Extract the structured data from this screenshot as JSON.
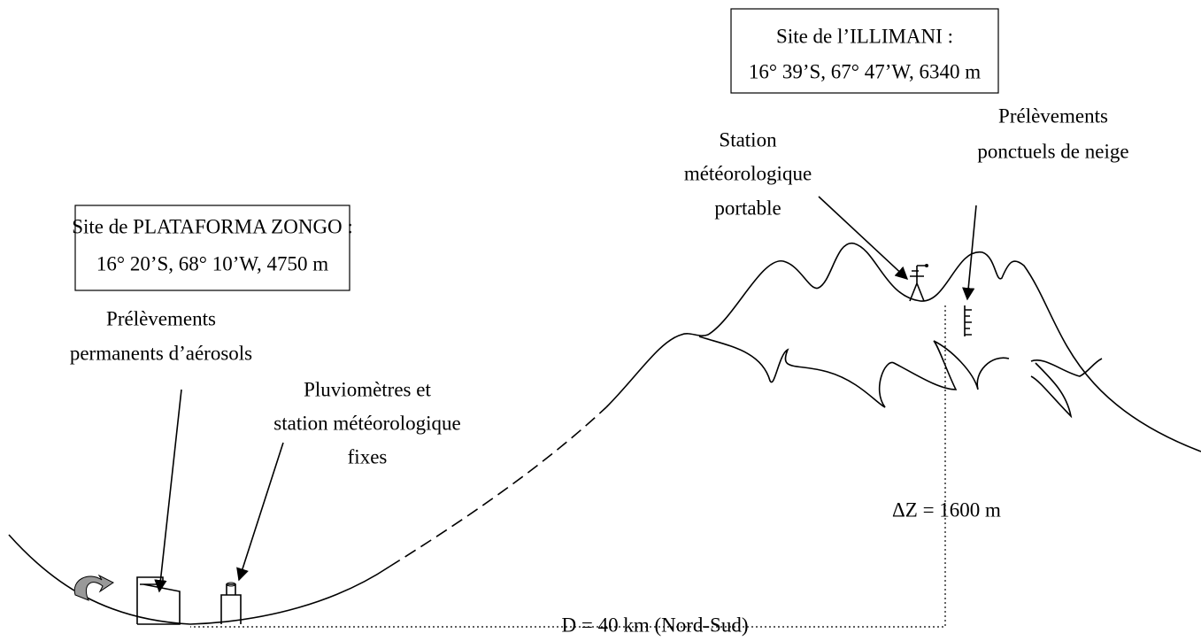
{
  "sites": [
    {
      "name": "Site de l’ILLIMANI :",
      "coords": "16° 39’S, 67° 47’W, 6340 m"
    },
    {
      "name": "Site de PLATAFORMA ZONGO :",
      "coords": "16° 20’S, 68° 10’W, 4750 m"
    }
  ],
  "labels": [
    {
      "lines": [
        "Station",
        "météorologique",
        "portable"
      ]
    },
    {
      "lines": [
        "Prélèvements",
        "ponctuels de neige"
      ]
    },
    {
      "lines": [
        "Prélèvements",
        "permanents d’aérosols"
      ]
    },
    {
      "lines": [
        "Pluviomètres et",
        "station météorologique",
        "fixes"
      ]
    }
  ],
  "delta_z": "ΔZ = 1600 m",
  "distance": "D = 40 km (Nord-Sud)"
}
